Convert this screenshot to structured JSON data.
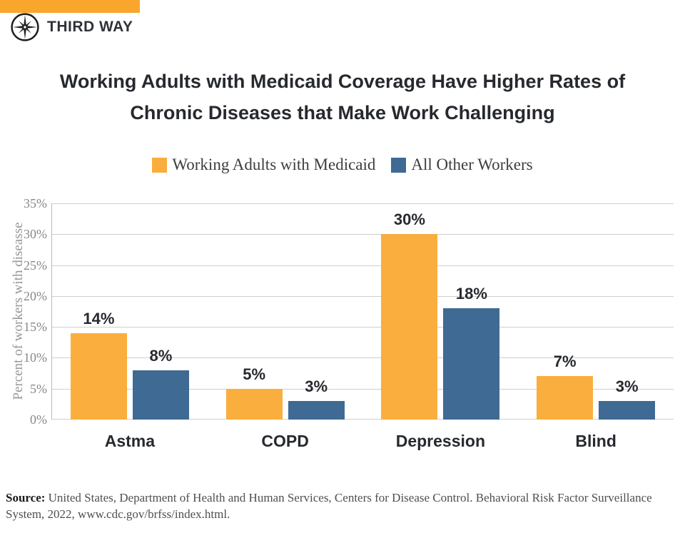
{
  "header": {
    "brand": "THIRD WAY"
  },
  "title": {
    "line1": "Working Adults with Medicaid Coverage Have Higher Rates of",
    "line2": "Chronic Diseases that Make Work Challenging"
  },
  "chart_data": {
    "type": "bar",
    "categories": [
      "Astma",
      "COPD",
      "Depression",
      "Blind"
    ],
    "series": [
      {
        "name": "Working Adults with Medicaid",
        "color": "#FAAE3E",
        "values": [
          14,
          5,
          30,
          7
        ]
      },
      {
        "name": "All Other Workers",
        "color": "#3E6A93",
        "values": [
          8,
          3,
          18,
          3
        ]
      }
    ],
    "data_labels": [
      [
        "14%",
        "5%",
        "30%",
        "7%"
      ],
      [
        "8%",
        "3%",
        "18%",
        "3%"
      ]
    ],
    "title": "Working Adults with Medicaid Coverage Have Higher Rates of Chronic Diseases that Make Work Challenging",
    "xlabel": "",
    "ylabel": "Percent of workers with diseasse",
    "yticks": [
      "35%",
      "30%",
      "25%",
      "20%",
      "15%",
      "10%",
      "5%",
      "0%"
    ],
    "ylim": [
      0,
      35
    ],
    "grid": true,
    "legend_position": "top",
    "gridline_color": "#CFCFCF",
    "accent_bar_color": "#F9A62C"
  },
  "footer": {
    "source_label": "Source:",
    "source_text": " United States, Department of Health and Human Services, Centers for Disease Control. Behavioral Risk Factor Surveillance System, 2022, www.cdc.gov/brfss/index.html."
  }
}
